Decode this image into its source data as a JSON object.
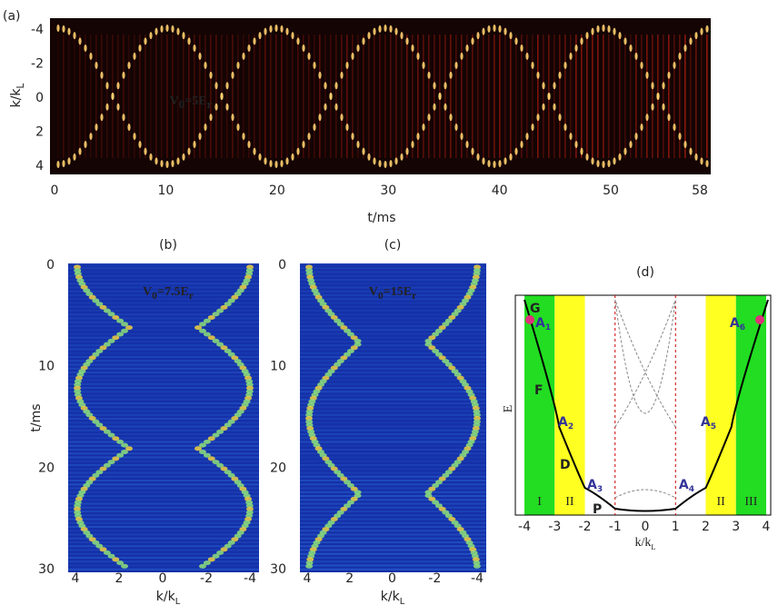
{
  "panels": [
    {
      "label": "(a)",
      "annotation": {
        "main": "V",
        "sub1": "0",
        "mid": "=5E",
        "sub2": "r"
      },
      "xlabel": "t/ms",
      "ylabel": {
        "main": "k/k",
        "sub": "L"
      },
      "xticks": [
        "0",
        "10",
        "20",
        "30",
        "40",
        "50",
        "58"
      ],
      "yticks": [
        "-4",
        "-2",
        "0",
        "2",
        "4"
      ]
    },
    {
      "label": "(b)",
      "annotation": {
        "main": "V",
        "sub1": "0",
        "mid": "=7.5E",
        "sub2": "r"
      },
      "xlabel": {
        "main": "k/k",
        "sub": "L"
      },
      "ylabel": "t/ms",
      "xticks": [
        "4",
        "2",
        "0",
        "-2",
        "-4"
      ],
      "yticks": [
        "0",
        "10",
        "20",
        "30"
      ]
    },
    {
      "label": "(c)",
      "annotation": {
        "main": "V",
        "sub1": "0",
        "mid": "=15E",
        "sub2": "r"
      },
      "xlabel": {
        "main": "k/k",
        "sub": "L"
      },
      "xticks": [
        "4",
        "2",
        "0",
        "-2",
        "-4"
      ],
      "yticks": [
        "0",
        "10",
        "20",
        "30"
      ]
    },
    {
      "label": "(d)",
      "xlabel": {
        "main": "k/k",
        "sub": "L"
      },
      "ylabel": "E",
      "xticks": [
        "-4",
        "-3",
        "-2",
        "-1",
        "0",
        "1",
        "2",
        "3",
        "4"
      ],
      "regions": [
        "I",
        "II",
        "II",
        "III"
      ],
      "branches": [
        "G",
        "F",
        "D",
        "P"
      ],
      "points": [
        {
          "main": "A",
          "sub": "1"
        },
        {
          "main": "A",
          "sub": "2"
        },
        {
          "main": "A",
          "sub": "3"
        },
        {
          "main": "A",
          "sub": "4"
        },
        {
          "main": "A",
          "sub": "5"
        },
        {
          "main": "A",
          "sub": "6"
        }
      ]
    }
  ]
}
